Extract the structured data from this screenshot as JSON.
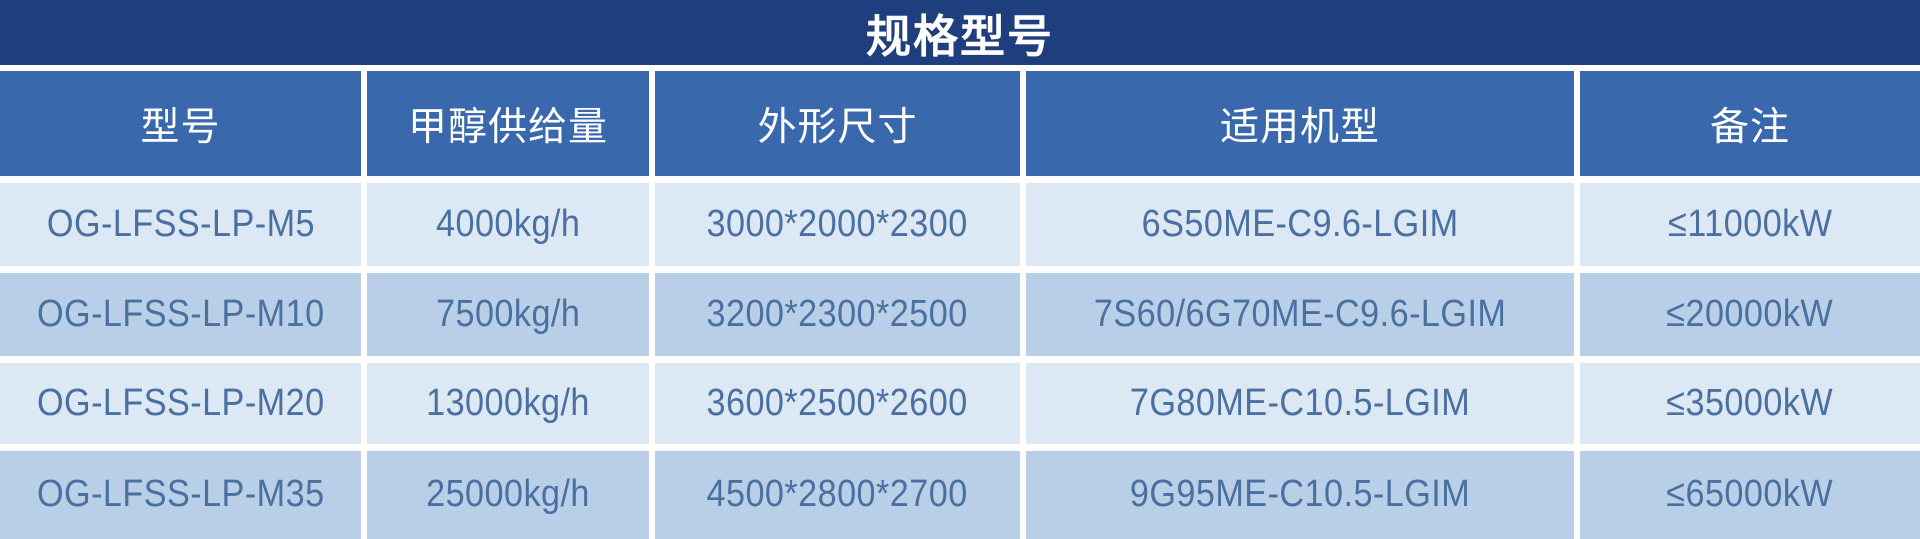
{
  "title": "规格型号",
  "colors": {
    "title_band": "#1e3e7d",
    "header_band": "#3a68ad",
    "row_light": "#dce8f4",
    "row_medium": "#b9cfe7",
    "header_text": "#ffffff",
    "title_text": "#ffffff",
    "data_text": "#4a70a2",
    "gap_color": "#ffffff"
  },
  "table": {
    "headers": [
      "型号",
      "甲醇供给量",
      "外形尺寸",
      "适用机型",
      "备注"
    ],
    "rows": [
      [
        "OG-LFSS-LP-M5",
        "4000kg/h",
        "3000*2000*2300",
        "6S50ME-C9.6-LGIM",
        "≤11000kW"
      ],
      [
        "OG-LFSS-LP-M10",
        "7500kg/h",
        "3200*2300*2500",
        "7S60/6G70ME-C9.6-LGIM",
        "≤20000kW"
      ],
      [
        "OG-LFSS-LP-M20",
        "13000kg/h",
        "3600*2500*2600",
        "7G80ME-C10.5-LGIM",
        "≤35000kW"
      ],
      [
        "OG-LFSS-LP-M35",
        "25000kg/h",
        "4500*2800*2700",
        "9G95ME-C10.5-LGIM",
        "≤65000kW"
      ]
    ]
  },
  "chart_data": {
    "type": "table",
    "title": "规格型号",
    "columns": [
      "型号",
      "甲醇供给量",
      "外形尺寸",
      "适用机型",
      "备注"
    ],
    "rows": [
      [
        "OG-LFSS-LP-M5",
        "4000kg/h",
        "3000*2000*2300",
        "6S50ME-C9.6-LGIM",
        "≤11000kW"
      ],
      [
        "OG-LFSS-LP-M10",
        "7500kg/h",
        "3200*2300*2500",
        "7S60/6G70ME-C9.6-LGIM",
        "≤20000kW"
      ],
      [
        "OG-LFSS-LP-M20",
        "13000kg/h",
        "3600*2500*2600",
        "7G80ME-C10.5-LGIM",
        "≤35000kW"
      ],
      [
        "OG-LFSS-LP-M35",
        "25000kg/h",
        "4500*2800*2700",
        "9G95ME-C10.5-LGIM",
        "≤65000kW"
      ]
    ]
  }
}
